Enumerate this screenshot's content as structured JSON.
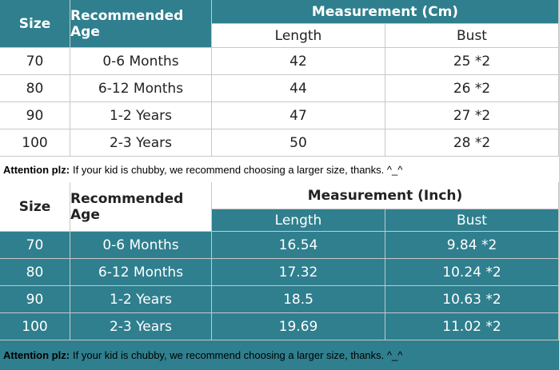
{
  "tables": [
    {
      "header": {
        "size": "Size",
        "age": "Recommended Age",
        "measurement": "Measurement (Cm)",
        "length": "Length",
        "bust": "Bust"
      },
      "rows": [
        [
          "70",
          "0-6 Months",
          "42",
          "25 *2"
        ],
        [
          "80",
          "6-12 Months",
          "44",
          "26 *2"
        ],
        [
          "90",
          "1-2 Years",
          "47",
          "27 *2"
        ],
        [
          "100",
          "2-3 Years",
          "50",
          "28 *2"
        ]
      ],
      "note": {
        "label": "Attention plz:",
        "text": "If your kid is chubby, we recommend choosing a larger size, thanks. ^_^"
      }
    },
    {
      "header": {
        "size": "Size",
        "age": "Recommended Age",
        "measurement": "Measurement (Inch)",
        "length": "Length",
        "bust": "Bust"
      },
      "rows": [
        [
          "70",
          "0-6 Months",
          "16.54",
          "9.84 *2"
        ],
        [
          "80",
          "6-12 Months",
          "17.32",
          "10.24 *2"
        ],
        [
          "90",
          "1-2 Years",
          "18.5",
          "10.63 *2"
        ],
        [
          "100",
          "2-3 Years",
          "19.69",
          "11.02 *2"
        ]
      ],
      "note": {
        "label": "Attention plz:",
        "text": "If your kid is chubby, we recommend choosing a larger size, thanks. ^_^"
      }
    }
  ]
}
